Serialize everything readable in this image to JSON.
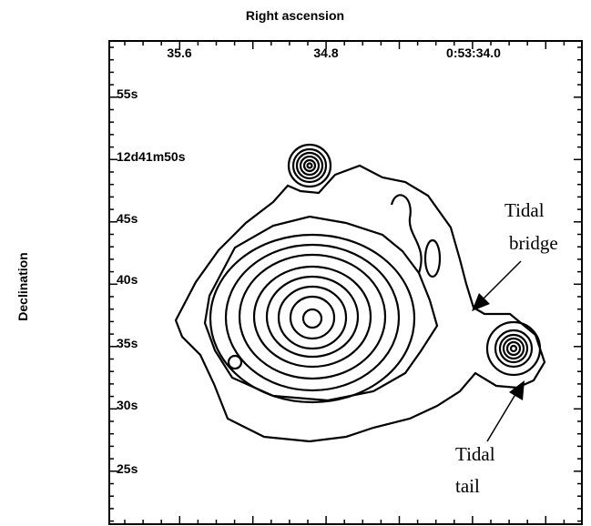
{
  "figure": {
    "x_axis_label": "Right ascension",
    "y_axis_label": "Declination",
    "x_tick_labels": [
      "35.6",
      "34.8",
      "0:53:34.0"
    ],
    "y_tick_labels": [
      "55s",
      "12d41m50s",
      "45s",
      "40s",
      "35s",
      "30s",
      "25s"
    ],
    "annotations": [
      [
        "Tidal",
        "bridge"
      ],
      [
        "Tidal",
        "tail"
      ]
    ]
  }
}
